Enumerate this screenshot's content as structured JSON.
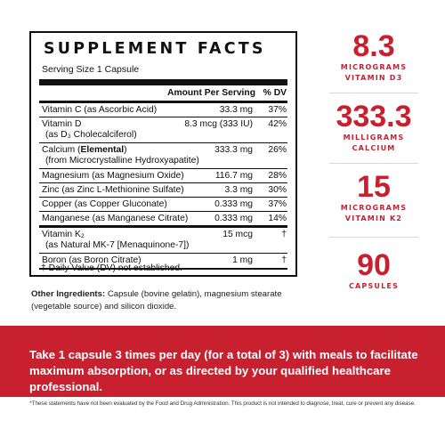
{
  "facts": {
    "title": "SUPPLEMENT FACTS",
    "serving": "Serving Size 1 Capsule",
    "header_amount": "Amount Per Serving",
    "header_dv": "% DV",
    "rows": [
      {
        "name": "Vitamin C (as Ascorbic Acid)",
        "amount": "33.3 mg",
        "dv": "37%"
      },
      {
        "name": "Vitamin D",
        "sub": "(as D₃ Cholecalciferol)",
        "amount": "8.3 mcg (333 IU)",
        "dv": "42%"
      },
      {
        "name_prefix": "Calcium (",
        "name_bold": "Elemental",
        "name_suffix": ")",
        "sub": "(from Microcrystalline Hydroxyapatite)",
        "amount": "333.3 mg",
        "dv": "26%"
      },
      {
        "name": "Magnesium (as Magnesium Oxide)",
        "amount": "116.7 mg",
        "dv": "28%"
      },
      {
        "name": "Zinc (as Zinc L-Methionine Sulfate)",
        "amount": "3.3 mg",
        "dv": "30%"
      },
      {
        "name": "Copper (as Copper Gluconate)",
        "amount": "0.333 mg",
        "dv": "37%"
      },
      {
        "name": "Manganese (as Manganese Citrate)",
        "amount": "0.333 mg",
        "dv": "14%"
      },
      {
        "name": "Vitamin K₂",
        "sub": "(as Natural MK-7 [Menaquinone-7])",
        "amount": "15 mcg",
        "dv": "†"
      },
      {
        "name": "Boron (as Boron Citrate)",
        "amount": "1 mg",
        "dv": "†"
      }
    ],
    "footnote": "† Daily Value (DV) not established."
  },
  "other_ingredients": {
    "label": "Other Ingredients:",
    "text": " Capsule (bovine gelatin), magnesium stearate (vegetable source) and silicon dioxide."
  },
  "stats": [
    {
      "big": "8.3",
      "line1": "MICROGRAMS",
      "line2": "VITAMIN D3"
    },
    {
      "big": "333.3",
      "line1": "MILLIGRAMS",
      "line2": "CALCIUM"
    },
    {
      "big": "15",
      "line1": "MICROGRAMS",
      "line2": "VITAMIN K2"
    },
    {
      "big": "90",
      "line1": "CAPSULES",
      "line2": ""
    }
  ],
  "banner": {
    "text": "Take 1 capsule 3 times per day (for a total of 3) with meals to facilitate maximum absorption, or as directed by your qualified healthcare professional."
  },
  "disclaimer": "*These statements have not been evaluated by the Food and Drug Administration. This product is not intended to diagnose, treat, cure or prevent any disease.",
  "colors": {
    "accent": "#c8202f",
    "text": "#111111",
    "banner_text": "#ffffff"
  }
}
